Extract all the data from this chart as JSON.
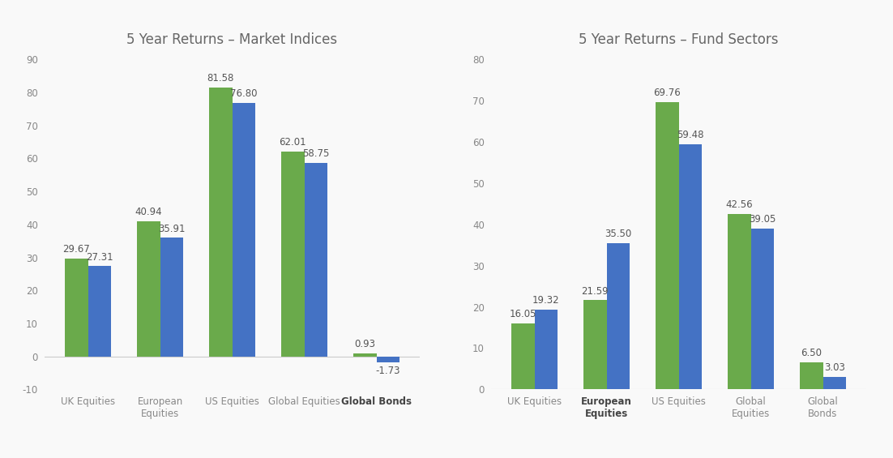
{
  "left_title": "5 Year Returns – Market Indices",
  "right_title": "5 Year Returns – Fund Sectors",
  "left_categories": [
    "UK Equities",
    "European\nEquities",
    "US Equities",
    "Global Equities",
    "Global Bonds"
  ],
  "right_categories": [
    "UK Equities",
    "European\nEquities",
    "US Equities",
    "Global\nEquities",
    "Global\nBonds"
  ],
  "left_green": [
    29.67,
    40.94,
    81.58,
    62.01,
    0.93
  ],
  "left_blue": [
    27.31,
    35.91,
    76.8,
    58.75,
    -1.73
  ],
  "right_green": [
    16.05,
    21.59,
    69.76,
    42.56,
    6.5
  ],
  "right_blue": [
    19.32,
    35.5,
    59.48,
    39.05,
    3.03
  ],
  "green_color": "#6aaa4b",
  "blue_color": "#4472c4",
  "left_ylim": [
    -10,
    90
  ],
  "left_yticks": [
    -10,
    0,
    10,
    20,
    30,
    40,
    50,
    60,
    70,
    80,
    90
  ],
  "right_ylim": [
    0,
    80
  ],
  "right_yticks": [
    0,
    10,
    20,
    30,
    40,
    50,
    60,
    70,
    80
  ],
  "bg_color": "#f9f9f9",
  "label_fontsize": 8.5,
  "title_fontsize": 12,
  "tick_fontsize": 8.5,
  "bar_width": 0.32
}
